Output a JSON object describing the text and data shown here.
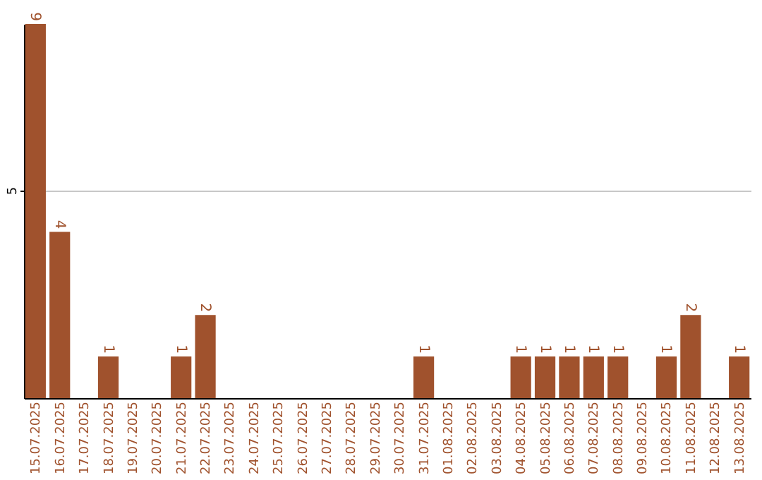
{
  "chart_data": {
    "type": "bar",
    "categories": [
      "15.07.2025",
      "16.07.2025",
      "17.07.2025",
      "18.07.2025",
      "19.07.2025",
      "20.07.2025",
      "21.07.2025",
      "22.07.2025",
      "23.07.2025",
      "24.07.2025",
      "25.07.2025",
      "26.07.2025",
      "27.07.2025",
      "28.07.2025",
      "29.07.2025",
      "30.07.2025",
      "31.07.2025",
      "01.08.2025",
      "02.08.2025",
      "03.08.2025",
      "04.08.2025",
      "05.08.2025",
      "06.08.2025",
      "07.08.2025",
      "08.08.2025",
      "09.08.2025",
      "10.08.2025",
      "11.08.2025",
      "12.08.2025",
      "13.08.2025"
    ],
    "values": [
      9,
      4,
      0,
      1,
      0,
      0,
      1,
      2,
      0,
      0,
      0,
      0,
      0,
      0,
      0,
      0,
      1,
      0,
      0,
      0,
      1,
      1,
      1,
      1,
      1,
      0,
      1,
      2,
      0,
      1
    ],
    "value_labels": [
      "9",
      "4",
      null,
      "1",
      null,
      null,
      "1",
      "2",
      null,
      null,
      null,
      null,
      null,
      null,
      null,
      null,
      "1",
      null,
      null,
      null,
      "1",
      "1",
      "1",
      "1",
      "1",
      null,
      "1",
      "2",
      null,
      "1"
    ],
    "color": "#a0522d",
    "ylim": [
      0,
      9
    ],
    "yticks": [
      5
    ],
    "grid": "y"
  }
}
